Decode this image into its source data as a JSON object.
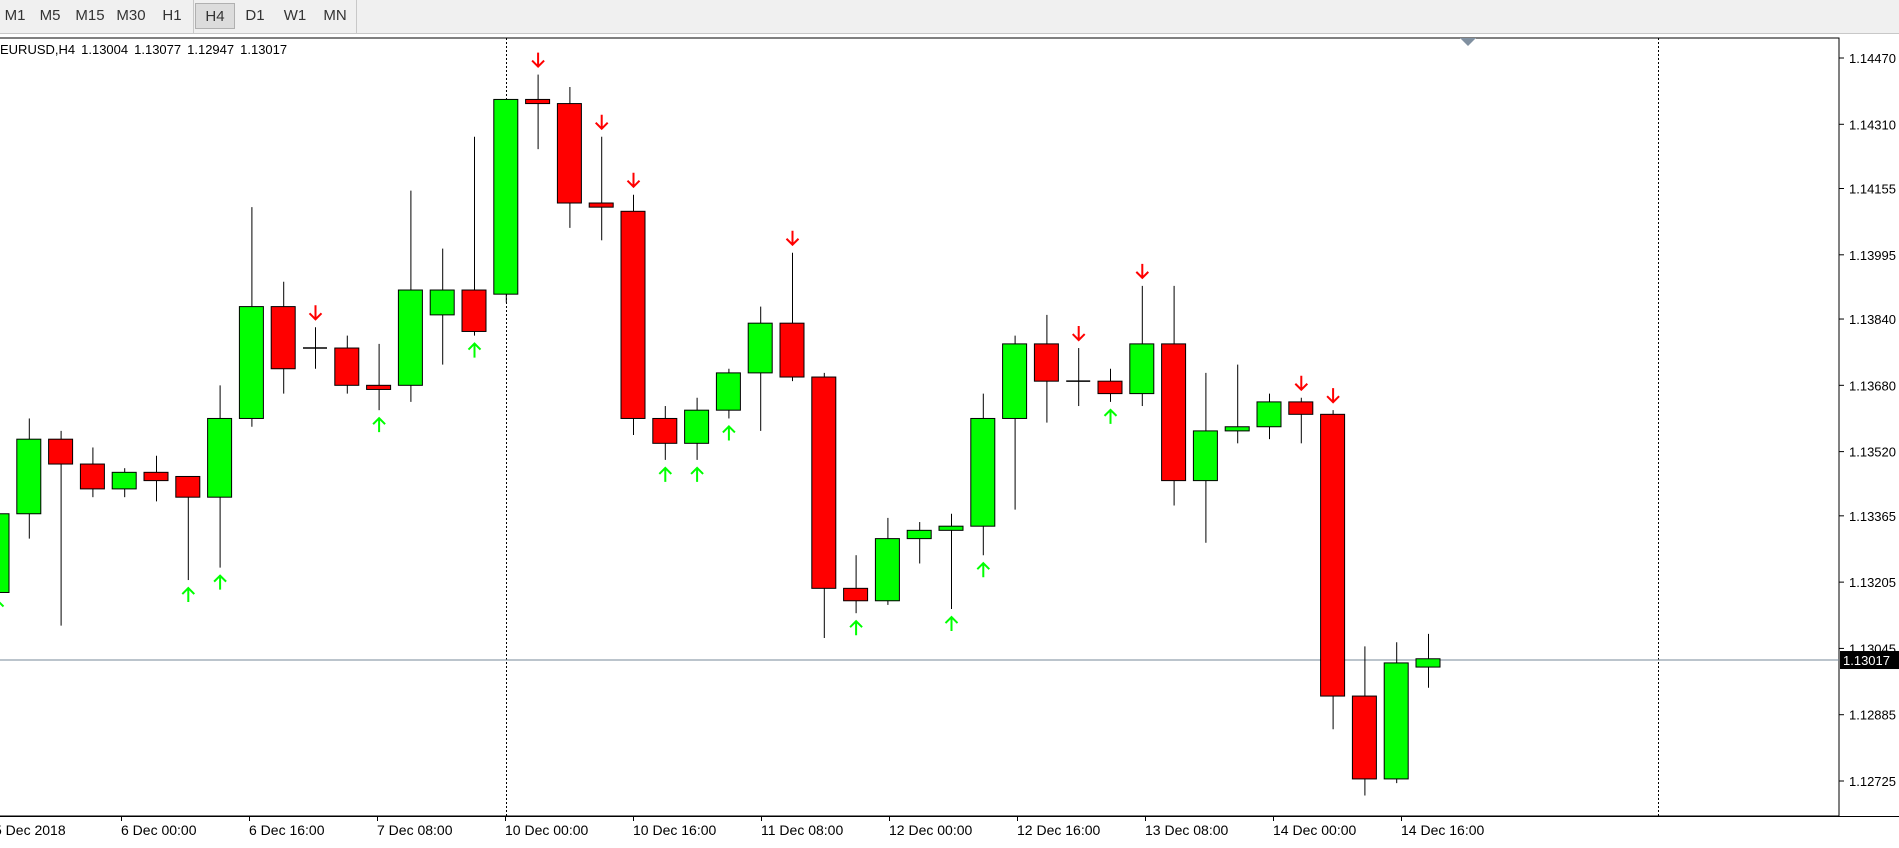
{
  "toolbar": {
    "timeframes": [
      "M1",
      "M5",
      "M15",
      "M30",
      "H1",
      "H4",
      "D1",
      "W1",
      "MN"
    ],
    "active": "H4"
  },
  "header": {
    "symbol_label": "EURUSD,H4",
    "open": "1.13004",
    "high": "1.13077",
    "low": "1.12947",
    "close": "1.13017"
  },
  "colors": {
    "bull": "#00ff00",
    "bear": "#ff0000",
    "wick": "#000000",
    "price_line": "#778899",
    "background": "#ffffff"
  },
  "chart_data": {
    "type": "candlestick",
    "symbol": "EURUSD",
    "timeframe": "H4",
    "ylim": [
      1.1264,
      1.1452
    ],
    "y_ticks": [
      "1.14470",
      "1.14310",
      "1.14155",
      "1.13995",
      "1.13840",
      "1.13680",
      "1.13520",
      "1.13365",
      "1.13205",
      "1.13045",
      "1.12885",
      "1.12725"
    ],
    "x_ticks": [
      "5 Dec 2018",
      "6 Dec 00:00",
      "6 Dec 16:00",
      "7 Dec 08:00",
      "10 Dec 00:00",
      "10 Dec 16:00",
      "11 Dec 08:00",
      "12 Dec 00:00",
      "12 Dec 16:00",
      "13 Dec 08:00",
      "14 Dec 00:00",
      "14 Dec 16:00"
    ],
    "current_price": "1.13017",
    "candles": [
      {
        "o": 1.1318,
        "h": 1.1338,
        "l": 1.1318,
        "c": 1.1337
      },
      {
        "o": 1.1337,
        "h": 1.136,
        "l": 1.1331,
        "c": 1.1355
      },
      {
        "o": 1.1355,
        "h": 1.1357,
        "l": 1.131,
        "c": 1.1349
      },
      {
        "o": 1.1349,
        "h": 1.1353,
        "l": 1.1341,
        "c": 1.1343
      },
      {
        "o": 1.1343,
        "h": 1.1348,
        "l": 1.1341,
        "c": 1.1347
      },
      {
        "o": 1.1347,
        "h": 1.1351,
        "l": 1.134,
        "c": 1.1345
      },
      {
        "o": 1.1346,
        "h": 1.1346,
        "l": 1.1321,
        "c": 1.1341
      },
      {
        "o": 1.1341,
        "h": 1.1368,
        "l": 1.1324,
        "c": 1.136
      },
      {
        "o": 1.136,
        "h": 1.1411,
        "l": 1.1358,
        "c": 1.1387
      },
      {
        "o": 1.1387,
        "h": 1.1393,
        "l": 1.1366,
        "c": 1.1372
      },
      {
        "o": 1.1377,
        "h": 1.1382,
        "l": 1.1372,
        "c": 1.1377
      },
      {
        "o": 1.1377,
        "h": 1.138,
        "l": 1.1366,
        "c": 1.1368
      },
      {
        "o": 1.1368,
        "h": 1.1378,
        "l": 1.1362,
        "c": 1.1367
      },
      {
        "o": 1.1368,
        "h": 1.1415,
        "l": 1.1364,
        "c": 1.1391
      },
      {
        "o": 1.1385,
        "h": 1.1401,
        "l": 1.1373,
        "c": 1.1391
      },
      {
        "o": 1.1391,
        "h": 1.1428,
        "l": 1.138,
        "c": 1.1381
      },
      {
        "o": 1.139,
        "h": 1.1437,
        "l": 1.1388,
        "c": 1.1437
      },
      {
        "o": 1.1437,
        "h": 1.1443,
        "l": 1.1425,
        "c": 1.1436
      },
      {
        "o": 1.1436,
        "h": 1.144,
        "l": 1.1406,
        "c": 1.1412
      },
      {
        "o": 1.1412,
        "h": 1.1428,
        "l": 1.1403,
        "c": 1.1411
      },
      {
        "o": 1.141,
        "h": 1.1414,
        "l": 1.1356,
        "c": 1.136
      },
      {
        "o": 1.136,
        "h": 1.1363,
        "l": 1.135,
        "c": 1.1354
      },
      {
        "o": 1.1354,
        "h": 1.1365,
        "l": 1.135,
        "c": 1.1362
      },
      {
        "o": 1.1362,
        "h": 1.1372,
        "l": 1.136,
        "c": 1.1371
      },
      {
        "o": 1.1371,
        "h": 1.1387,
        "l": 1.1357,
        "c": 1.1383
      },
      {
        "o": 1.1383,
        "h": 1.14,
        "l": 1.1369,
        "c": 1.137
      },
      {
        "o": 1.137,
        "h": 1.1371,
        "l": 1.1307,
        "c": 1.1319
      },
      {
        "o": 1.1319,
        "h": 1.1327,
        "l": 1.1313,
        "c": 1.1316
      },
      {
        "o": 1.1316,
        "h": 1.1336,
        "l": 1.1315,
        "c": 1.1331
      },
      {
        "o": 1.1331,
        "h": 1.1335,
        "l": 1.1325,
        "c": 1.1333
      },
      {
        "o": 1.1333,
        "h": 1.1337,
        "l": 1.1314,
        "c": 1.1334
      },
      {
        "o": 1.1334,
        "h": 1.1366,
        "l": 1.1327,
        "c": 1.136
      },
      {
        "o": 1.136,
        "h": 1.138,
        "l": 1.1338,
        "c": 1.1378
      },
      {
        "o": 1.1378,
        "h": 1.1385,
        "l": 1.1359,
        "c": 1.1369
      },
      {
        "o": 1.1369,
        "h": 1.1377,
        "l": 1.1363,
        "c": 1.1369
      },
      {
        "o": 1.1369,
        "h": 1.1372,
        "l": 1.1364,
        "c": 1.1366
      },
      {
        "o": 1.1366,
        "h": 1.1392,
        "l": 1.1363,
        "c": 1.1378
      },
      {
        "o": 1.1378,
        "h": 1.1392,
        "l": 1.1339,
        "c": 1.1345
      },
      {
        "o": 1.1345,
        "h": 1.1371,
        "l": 1.133,
        "c": 1.1357
      },
      {
        "o": 1.1357,
        "h": 1.1373,
        "l": 1.1354,
        "c": 1.1358
      },
      {
        "o": 1.1358,
        "h": 1.1366,
        "l": 1.1355,
        "c": 1.1364
      },
      {
        "o": 1.1364,
        "h": 1.1365,
        "l": 1.1354,
        "c": 1.1361
      },
      {
        "o": 1.1361,
        "h": 1.1362,
        "l": 1.1285,
        "c": 1.1293
      },
      {
        "o": 1.1293,
        "h": 1.1305,
        "l": 1.1269,
        "c": 1.1273
      },
      {
        "o": 1.1273,
        "h": 1.1306,
        "l": 1.1272,
        "c": 1.1301
      },
      {
        "o": 1.13,
        "h": 1.1308,
        "l": 1.1295,
        "c": 1.1302
      }
    ],
    "fractal_arrows": [
      {
        "index": 0,
        "dir": "up"
      },
      {
        "index": 6,
        "dir": "up"
      },
      {
        "index": 7,
        "dir": "up"
      },
      {
        "index": 10,
        "dir": "down"
      },
      {
        "index": 12,
        "dir": "up"
      },
      {
        "index": 15,
        "dir": "up"
      },
      {
        "index": 17,
        "dir": "down"
      },
      {
        "index": 19,
        "dir": "down"
      },
      {
        "index": 20,
        "dir": "down"
      },
      {
        "index": 21,
        "dir": "up"
      },
      {
        "index": 22,
        "dir": "up"
      },
      {
        "index": 23,
        "dir": "up"
      },
      {
        "index": 25,
        "dir": "down"
      },
      {
        "index": 27,
        "dir": "up"
      },
      {
        "index": 30,
        "dir": "up"
      },
      {
        "index": 31,
        "dir": "up"
      },
      {
        "index": 34,
        "dir": "down"
      },
      {
        "index": 35,
        "dir": "up"
      },
      {
        "index": 36,
        "dir": "down"
      },
      {
        "index": 41,
        "dir": "down"
      },
      {
        "index": 42,
        "dir": "down"
      }
    ],
    "grid": false,
    "period_separators": true
  }
}
